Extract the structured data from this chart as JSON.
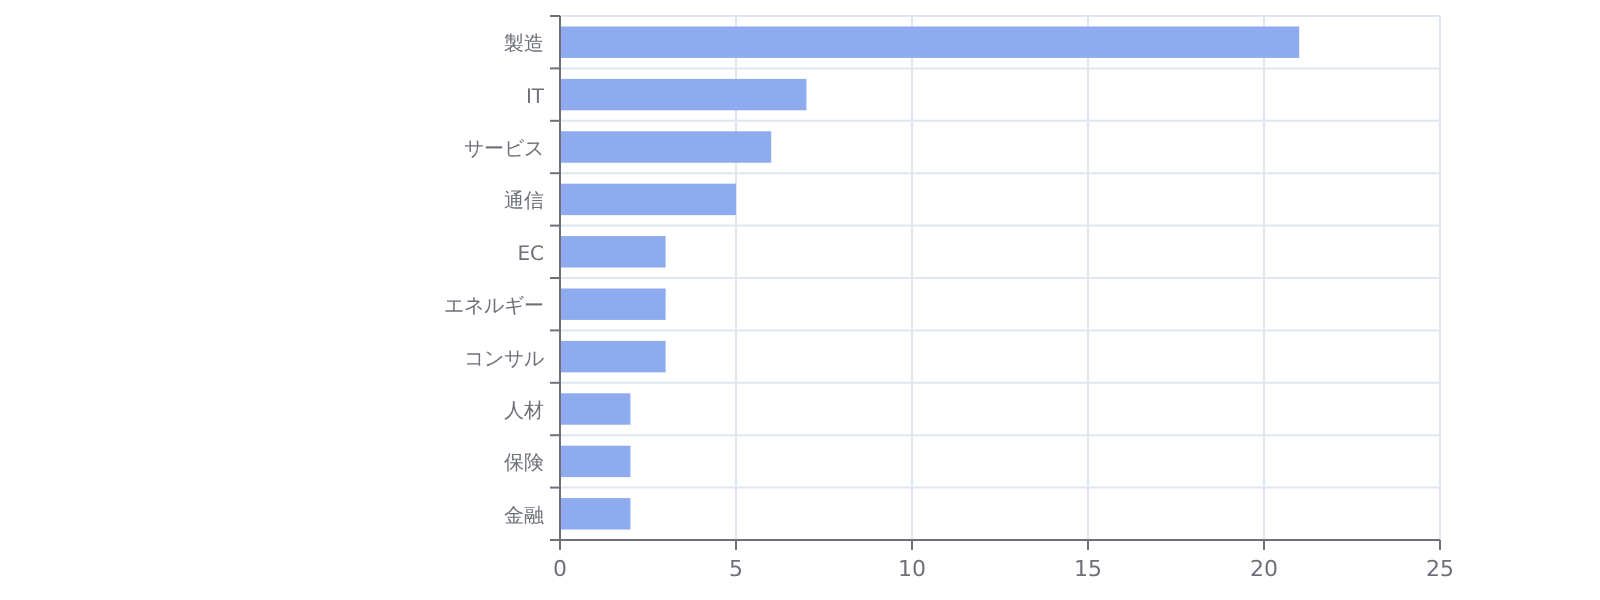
{
  "chart_data": {
    "type": "bar",
    "orientation": "horizontal",
    "categories": [
      "製造",
      "IT",
      "サービス",
      "通信",
      "EC",
      "エネルギー",
      "コンサル",
      "人材",
      "保険",
      "金融"
    ],
    "values": [
      21,
      7,
      6,
      5,
      3,
      3,
      3,
      2,
      2,
      2
    ],
    "color": "#8eabef",
    "xlim": [
      0,
      25
    ],
    "xticks": [
      0,
      5,
      10,
      15,
      20,
      25
    ],
    "grid": true
  }
}
